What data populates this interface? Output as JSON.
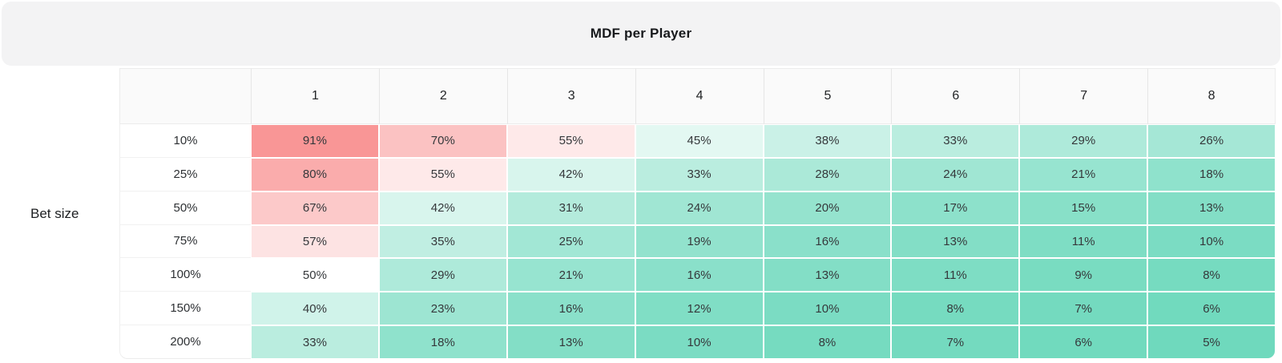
{
  "header": {
    "title": "MDF per Player"
  },
  "axis": {
    "row_axis_label": "Bet size"
  },
  "chart_data": {
    "type": "heatmap",
    "title": "MDF per Player",
    "row_axis_label": "Bet size",
    "columns": [
      "1",
      "2",
      "3",
      "4",
      "5",
      "6",
      "7",
      "8"
    ],
    "rows": [
      "10%",
      "25%",
      "50%",
      "75%",
      "100%",
      "150%",
      "200%"
    ],
    "values": [
      [
        91,
        70,
        55,
        45,
        38,
        33,
        29,
        26
      ],
      [
        80,
        55,
        42,
        33,
        28,
        24,
        21,
        18
      ],
      [
        67,
        42,
        31,
        24,
        20,
        17,
        15,
        13
      ],
      [
        57,
        35,
        25,
        19,
        16,
        13,
        11,
        10
      ],
      [
        50,
        29,
        21,
        16,
        13,
        11,
        9,
        8
      ],
      [
        40,
        23,
        16,
        12,
        10,
        8,
        7,
        6
      ],
      [
        33,
        18,
        13,
        10,
        8,
        7,
        6,
        5
      ]
    ],
    "value_suffix": "%",
    "color_scale": {
      "high_color": "#F99696",
      "mid_color": "#FFFFFF",
      "low_color": "#6FD9BD",
      "midpoint": 50,
      "max_value": 91,
      "min_value": 5
    }
  }
}
